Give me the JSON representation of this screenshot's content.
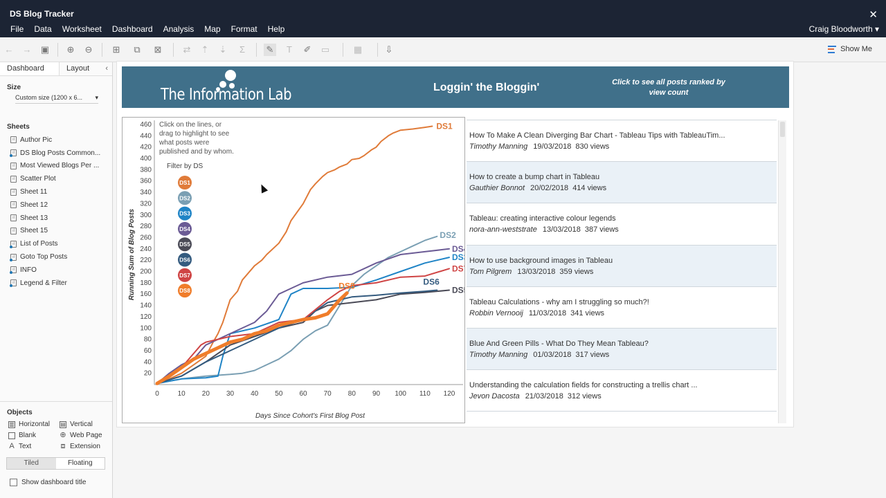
{
  "app": {
    "title": "DS Blog Tracker",
    "user": "Craig Bloodworth ▾"
  },
  "menu": [
    "File",
    "Data",
    "Worksheet",
    "Dashboard",
    "Analysis",
    "Map",
    "Format",
    "Help"
  ],
  "toolbar": {
    "show_me": "Show Me"
  },
  "leftpanel": {
    "tabs": [
      "Dashboard",
      "Layout"
    ],
    "size_heading": "Size",
    "size_value": "Custom size (1200 x 6...",
    "sheets_heading": "Sheets",
    "sheets": [
      {
        "label": "Author Pic",
        "linked": false
      },
      {
        "label": "DS Blog Posts Common...",
        "linked": true
      },
      {
        "label": "Most Viewed Blogs Per ...",
        "linked": false
      },
      {
        "label": "Scatter Plot",
        "linked": false
      },
      {
        "label": "Sheet 11",
        "linked": false
      },
      {
        "label": "Sheet 12",
        "linked": false
      },
      {
        "label": "Sheet 13",
        "linked": false
      },
      {
        "label": "Sheet 15",
        "linked": false
      },
      {
        "label": "List of Posts",
        "linked": true
      },
      {
        "label": "Goto Top Posts",
        "linked": true
      },
      {
        "label": "INFO",
        "linked": true
      },
      {
        "label": "Legend & Filter",
        "linked": true
      }
    ],
    "objects_heading": "Objects",
    "objects": [
      {
        "label": "Horizontal",
        "icon": "horizontal-icon"
      },
      {
        "label": "Vertical",
        "icon": "vertical-icon"
      },
      {
        "label": "Blank",
        "icon": "blank-icon"
      },
      {
        "label": "Web Page",
        "icon": "globe-icon"
      },
      {
        "label": "Text",
        "icon": "text-icon"
      },
      {
        "label": "Extension",
        "icon": "extension-icon"
      }
    ],
    "layout_modes": [
      "Tiled",
      "Floating"
    ],
    "show_title": "Show dashboard title"
  },
  "banner": {
    "logo_text": "The Information Lab",
    "title": "Loggin' the Bloggin'",
    "link": "Click to see all posts ranked by view count"
  },
  "chart_data": {
    "type": "line",
    "instruction": "Click on the lines, or drag to highlight to see what posts were published and by whom.",
    "legend_title": "Filter by DS",
    "xlabel": "Days Since Cohort's First Blog Post",
    "ylabel": "Running Sum of Blog Posts",
    "xlim": [
      0,
      120
    ],
    "ylim": [
      0,
      460
    ],
    "xticks": [
      0,
      10,
      20,
      30,
      40,
      50,
      60,
      70,
      80,
      90,
      100,
      110,
      120
    ],
    "yticks": [
      20,
      40,
      60,
      80,
      100,
      120,
      140,
      160,
      180,
      200,
      220,
      240,
      260,
      280,
      300,
      320,
      340,
      360,
      380,
      400,
      420,
      440,
      460
    ],
    "grid": false,
    "series": [
      {
        "name": "DS1",
        "color": "#e07b39",
        "x": [
          0,
          5,
          10,
          15,
          20,
          23,
          25,
          27,
          30,
          33,
          35,
          40,
          43,
          45,
          50,
          53,
          55,
          60,
          63,
          65,
          68,
          70,
          73,
          75,
          78,
          80,
          83,
          85,
          88,
          90,
          92,
          95,
          97,
          100,
          105,
          110,
          113
        ],
        "y": [
          2,
          10,
          20,
          35,
          50,
          75,
          90,
          110,
          150,
          165,
          185,
          210,
          220,
          230,
          250,
          270,
          290,
          320,
          345,
          355,
          368,
          375,
          380,
          385,
          390,
          398,
          400,
          405,
          415,
          420,
          430,
          440,
          445,
          450,
          452,
          455,
          457
        ]
      },
      {
        "name": "DS2",
        "color": "#7a9fb3",
        "x": [
          0,
          10,
          20,
          30,
          35,
          40,
          45,
          50,
          55,
          60,
          65,
          70,
          75,
          80,
          85,
          90,
          95,
          100,
          105,
          110,
          115
        ],
        "y": [
          2,
          10,
          15,
          18,
          20,
          25,
          35,
          45,
          60,
          80,
          95,
          105,
          140,
          175,
          195,
          210,
          225,
          235,
          245,
          255,
          262
        ]
      },
      {
        "name": "DS3",
        "color": "#1f84c6",
        "x": [
          0,
          10,
          20,
          25,
          27,
          30,
          40,
          50,
          55,
          60,
          70,
          80,
          90,
          100,
          110,
          120
        ],
        "y": [
          2,
          10,
          12,
          15,
          50,
          90,
          100,
          115,
          160,
          170,
          170,
          172,
          185,
          200,
          215,
          225
        ]
      },
      {
        "name": "DS4",
        "color": "#6b5b95",
        "x": [
          0,
          5,
          10,
          15,
          20,
          30,
          40,
          45,
          50,
          55,
          60,
          70,
          80,
          90,
          100,
          110,
          120
        ],
        "y": [
          2,
          20,
          35,
          45,
          70,
          90,
          110,
          130,
          160,
          170,
          180,
          190,
          195,
          215,
          230,
          235,
          240
        ]
      },
      {
        "name": "DS5",
        "color": "#4a4a56",
        "x": [
          0,
          10,
          20,
          30,
          40,
          50,
          60,
          65,
          70,
          80,
          90,
          100,
          110,
          120
        ],
        "y": [
          2,
          15,
          40,
          70,
          85,
          100,
          110,
          130,
          140,
          145,
          150,
          160,
          163,
          167
        ]
      },
      {
        "name": "DS6",
        "color": "#345b7f",
        "x": [
          0,
          10,
          20,
          30,
          40,
          50,
          60,
          65,
          70,
          75,
          80,
          90,
          100,
          110,
          115
        ],
        "y": [
          2,
          15,
          40,
          60,
          80,
          100,
          115,
          130,
          145,
          150,
          155,
          158,
          162,
          165,
          167
        ]
      },
      {
        "name": "DS7",
        "color": "#cf4444",
        "x": [
          0,
          10,
          18,
          20,
          25,
          30,
          40,
          50,
          60,
          70,
          75,
          80,
          90,
          100,
          110,
          120
        ],
        "y": [
          2,
          30,
          70,
          75,
          80,
          85,
          90,
          110,
          115,
          150,
          165,
          175,
          180,
          190,
          192,
          205
        ]
      },
      {
        "name": "DS8",
        "color": "#f07d2a",
        "x": [
          0,
          5,
          10,
          15,
          20,
          25,
          30,
          35,
          40,
          45,
          50,
          55,
          60,
          65,
          70,
          73,
          75,
          78
        ],
        "y": [
          2,
          15,
          30,
          45,
          55,
          65,
          75,
          80,
          90,
          95,
          105,
          110,
          115,
          118,
          125,
          140,
          150,
          162
        ],
        "bold": true
      }
    ]
  },
  "posts": [
    {
      "title": "How To Make A Clean Diverging Bar Chart - Tableau Tips with TableauTim...",
      "author": "Timothy Manning",
      "date": "19/03/2018",
      "views": "830 views"
    },
    {
      "title": "How to create a bump chart in Tableau",
      "author": "Gauthier Bonnot",
      "date": "20/02/2018",
      "views": "414 views"
    },
    {
      "title": "Tableau: creating interactive colour legends",
      "author": "nora-ann-weststrate",
      "date": "13/03/2018",
      "views": "387 views"
    },
    {
      "title": "How to use background images in Tableau",
      "author": "Tom Pilgrem",
      "date": "13/03/2018",
      "views": "359 views"
    },
    {
      "title": "Tableau Calculations - why am I struggling so much?!",
      "author": "Robbin Vernooij",
      "date": "11/03/2018",
      "views": "341 views"
    },
    {
      "title": "Blue And Green Pills - What Do They Mean Tableau?",
      "author": "Timothy Manning",
      "date": "01/03/2018",
      "views": "317 views"
    },
    {
      "title": "Understanding the calculation fields for constructing a trellis chart ...",
      "author": "Jevon Dacosta",
      "date": "21/03/2018",
      "views": "312 views"
    }
  ]
}
